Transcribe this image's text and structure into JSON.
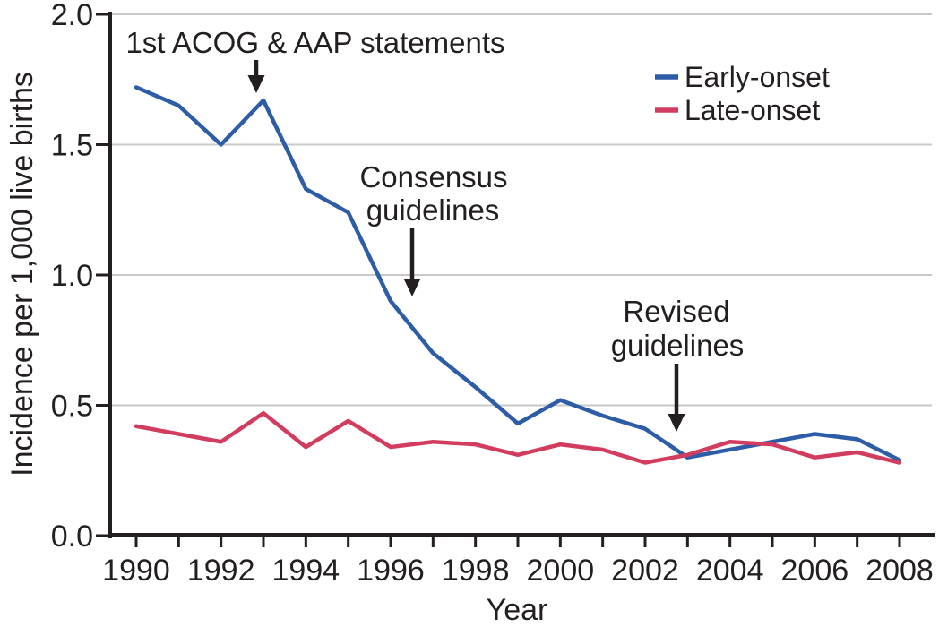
{
  "figure": {
    "y_axis": {
      "label": "Incidence per 1,000 live births",
      "tick_labels": [
        "0.0",
        "0.5",
        "1.0",
        "1.5",
        "2.0"
      ]
    },
    "x_axis": {
      "label": "Year",
      "tick_labels": [
        "1990",
        "1992",
        "1994",
        "1996",
        "1998",
        "2000",
        "2002",
        "2004",
        "2006",
        "2008"
      ]
    },
    "legend": {
      "entries": [
        {
          "label": "Early-onset",
          "color": "#2e5da8"
        },
        {
          "label": "Late-onset",
          "color": "#d23c5f"
        }
      ]
    },
    "annotations": [
      {
        "line1": "1st ACOG & AAP statements",
        "line2": ""
      },
      {
        "line1": "Consensus",
        "line2": "guidelines"
      },
      {
        "line1": "Revised",
        "line2": "guidelines"
      }
    ]
  },
  "chart_data": {
    "type": "line",
    "title": "",
    "xlabel": "Year",
    "ylabel": "Incidence per 1,000 live births",
    "x": [
      1990,
      1991,
      1992,
      1993,
      1994,
      1995,
      1996,
      1997,
      1998,
      1999,
      2000,
      2001,
      2002,
      2003,
      2004,
      2005,
      2006,
      2007,
      2008
    ],
    "series": [
      {
        "name": "Early-onset",
        "color": "#2e5da8",
        "values": [
          1.72,
          1.65,
          1.5,
          1.67,
          1.33,
          1.24,
          0.9,
          0.7,
          0.57,
          0.43,
          0.52,
          0.46,
          0.41,
          0.3,
          0.33,
          0.36,
          0.39,
          0.37,
          0.29
        ]
      },
      {
        "name": "Late-onset",
        "color": "#d23c5f",
        "values": [
          0.42,
          0.39,
          0.36,
          0.47,
          0.34,
          0.44,
          0.34,
          0.36,
          0.35,
          0.31,
          0.35,
          0.33,
          0.28,
          0.31,
          0.36,
          0.35,
          0.3,
          0.32,
          0.28
        ]
      }
    ],
    "xlim": [
      1990,
      2008
    ],
    "ylim": [
      0.0,
      2.0
    ],
    "yticks": [
      0.0,
      0.5,
      1.0,
      1.5,
      2.0
    ],
    "xticks_labeled": [
      1990,
      1992,
      1994,
      1996,
      1998,
      2000,
      2002,
      2004,
      2006,
      2008
    ],
    "xticks_minor_every_year": true,
    "grid": "horizontal gridlines at 0.5, 1.0, 1.5, 2.0",
    "legend_position": "top-right",
    "annotations": [
      {
        "text": "1st ACOG & AAP statements",
        "arrow_points_to": {
          "year": 1993,
          "value": 1.7
        }
      },
      {
        "text": "Consensus guidelines",
        "arrow_points_to": {
          "year": 1996.5,
          "value": 0.92
        }
      },
      {
        "text": "Revised guidelines",
        "arrow_points_to": {
          "year": 2002.7,
          "value": 0.4
        }
      }
    ],
    "colors": {
      "early_onset": "#2e5da8",
      "late_onset": "#d23c5f",
      "gridline": "#c9c9c9",
      "axis_text": "#231f20"
    }
  }
}
